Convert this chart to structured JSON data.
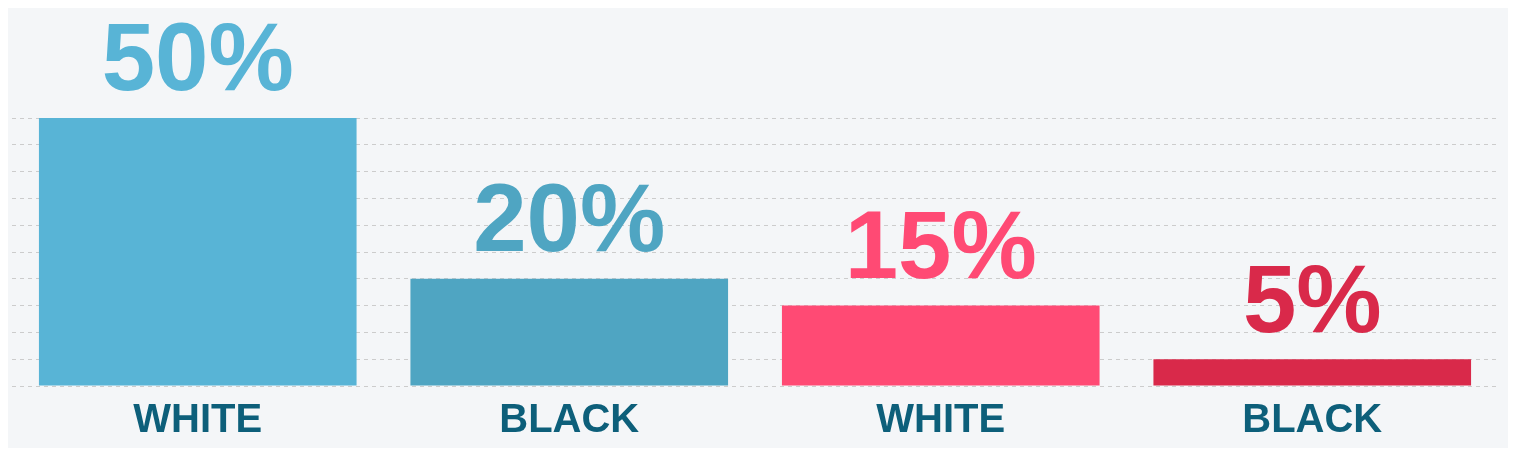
{
  "chart_data": {
    "type": "bar",
    "categories": [
      "WHITE",
      "BLACK",
      "WHITE",
      "BLACK"
    ],
    "values": [
      50,
      20,
      15,
      5
    ],
    "colors": [
      "#58b4d6",
      "#4fa5c2",
      "#ff4a74",
      "#d9294a"
    ],
    "value_labels": [
      "50%",
      "20%",
      "15%",
      "5%"
    ],
    "grid": "y",
    "tick_labels": "x"
  }
}
